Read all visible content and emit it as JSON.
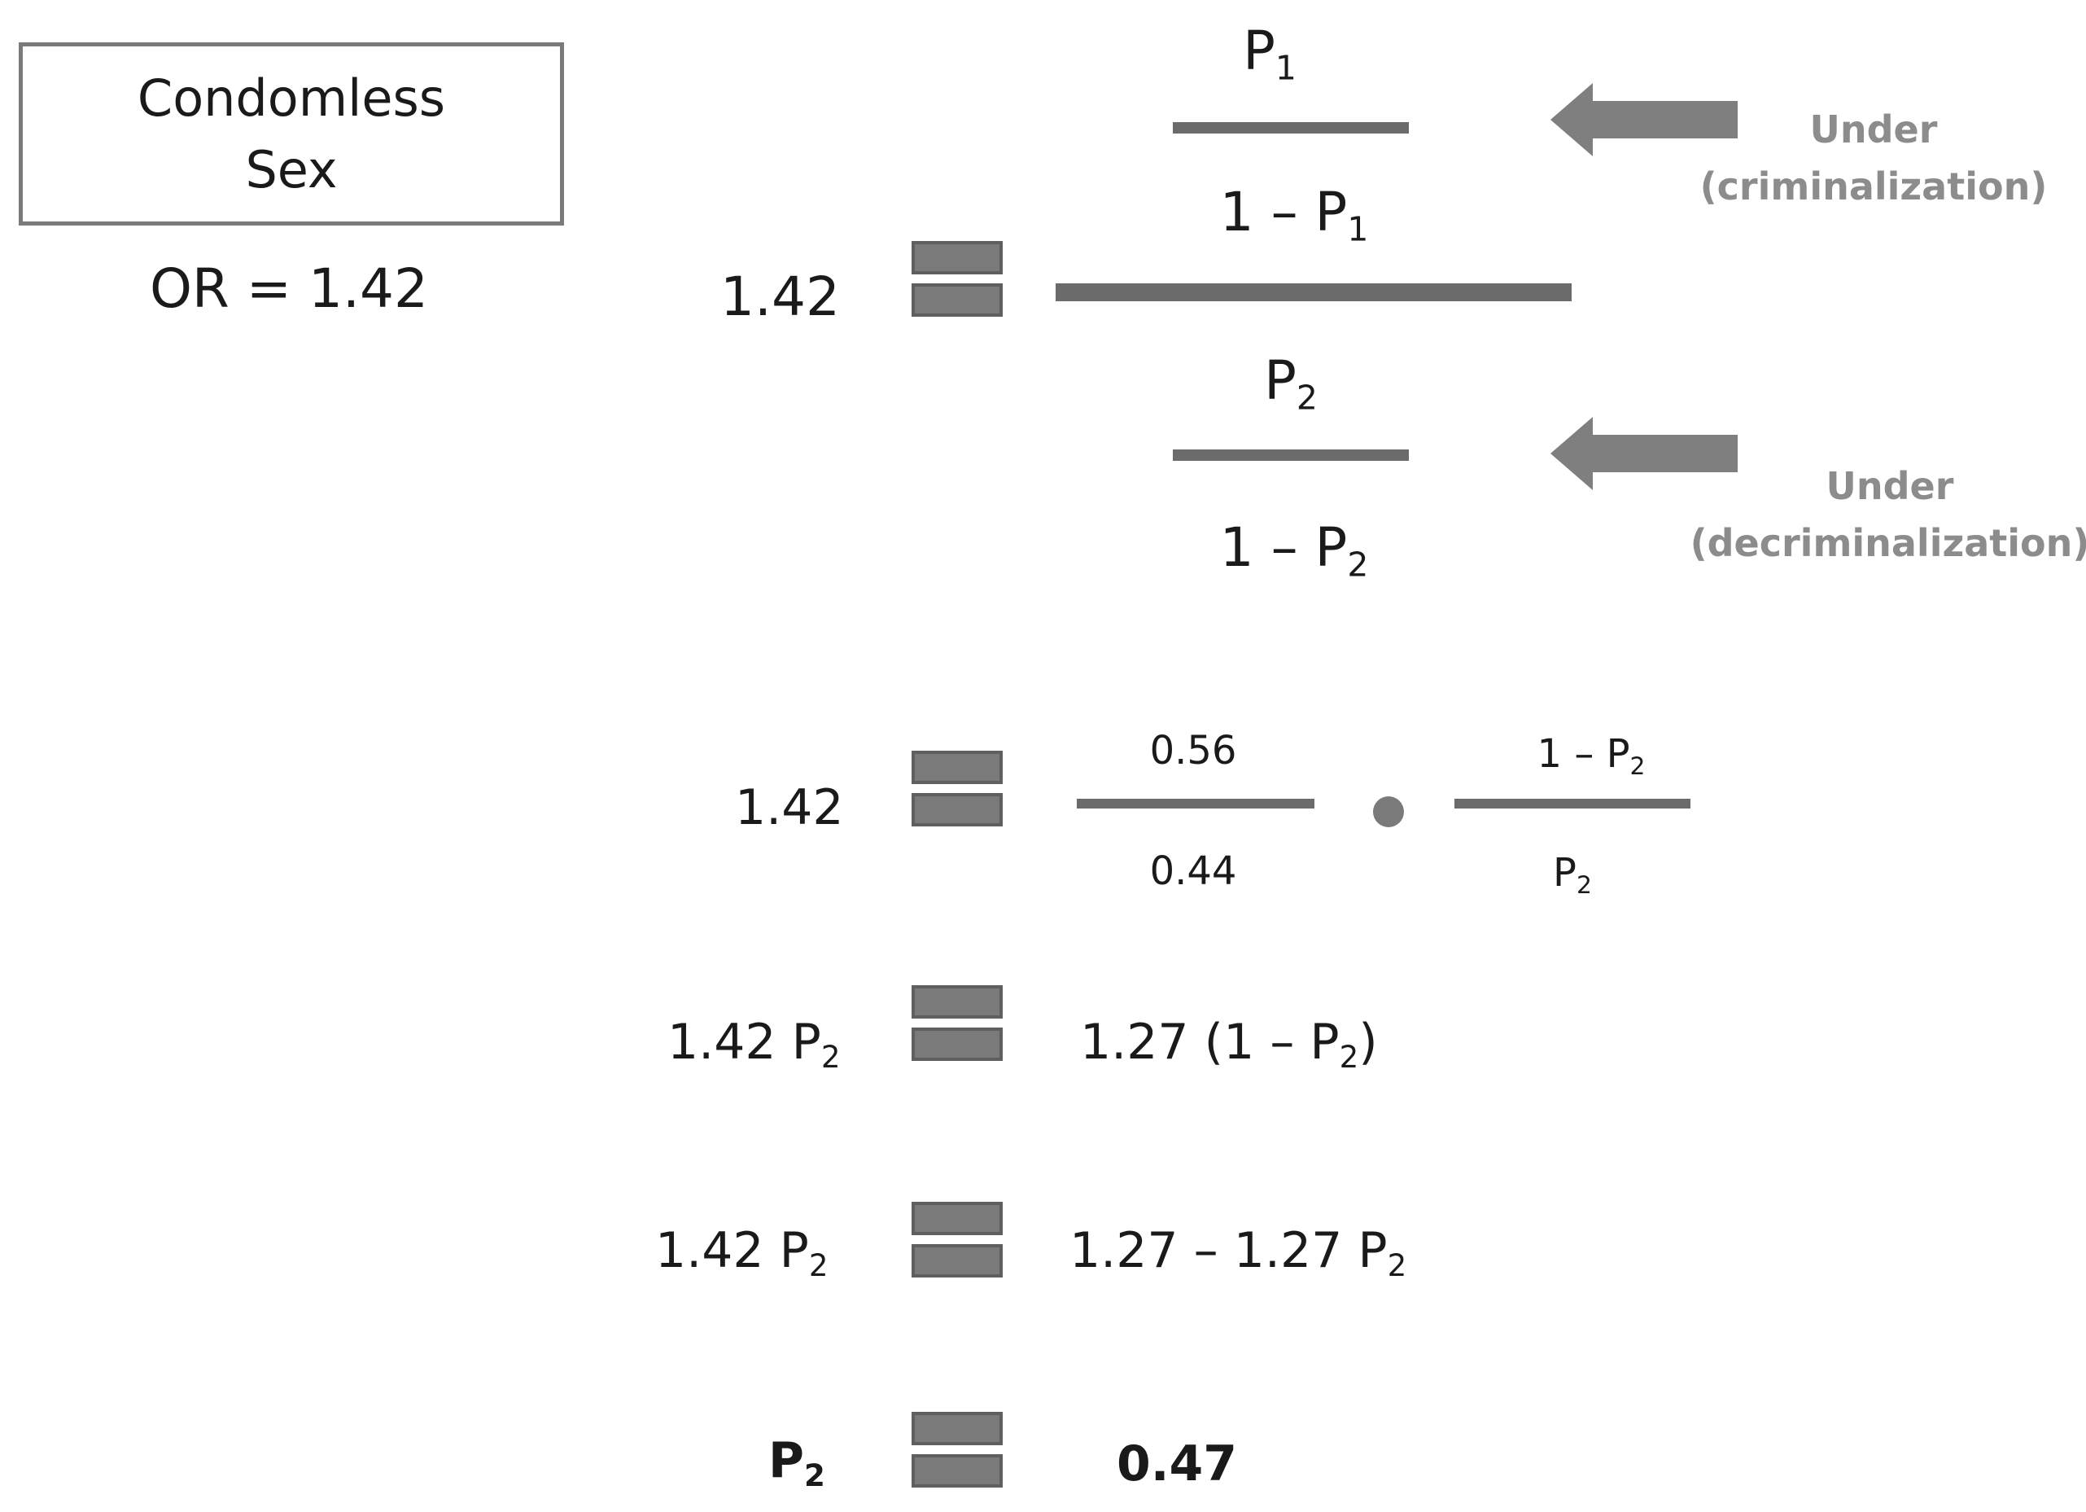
{
  "box": {
    "line1": "Condomless",
    "line2": "Sex",
    "or_label": "OR = 1.42"
  },
  "main_equation": {
    "lhs": "1.42",
    "top_num": {
      "base": "P",
      "sub": "1"
    },
    "top_den": {
      "base": "1 – P",
      "sub": "1"
    },
    "bot_num": {
      "base": "P",
      "sub": "2"
    },
    "bot_den": {
      "base": "1 – P",
      "sub": "2"
    }
  },
  "annotations": {
    "criminalization": {
      "line1": "Under",
      "line2": "(criminalization)"
    },
    "decriminalization": {
      "line1": "Under",
      "line2": "(decriminalization)"
    }
  },
  "step1": {
    "lhs": "1.42",
    "frac1_num": "0.56",
    "frac1_den": "0.44",
    "frac2_num": {
      "base": "1 – P",
      "sub": "2"
    },
    "frac2_den": {
      "base": "P",
      "sub": "2"
    }
  },
  "step2": {
    "lhs": {
      "base": "1.42 P",
      "sub": "2"
    },
    "rhs": {
      "base": "1.27 (1 – P",
      "sub": "2",
      "tail": ")"
    }
  },
  "step3": {
    "lhs": {
      "base": "1.42 P",
      "sub": "2"
    },
    "rhs": {
      "base": "1.27 – 1.27 P",
      "sub": "2"
    }
  },
  "result": {
    "lhs": {
      "base": "P",
      "sub": "2"
    },
    "rhs": "0.47"
  },
  "colors": {
    "text": "#1a1a1a",
    "bars": "#6b6b6b",
    "annotation": "#8c8c8c"
  }
}
